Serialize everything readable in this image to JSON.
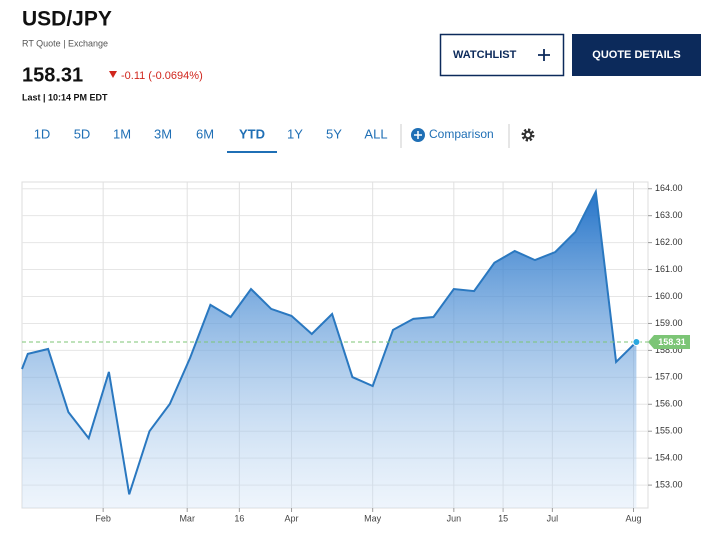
{
  "header": {
    "symbol": "USD/JPY",
    "source": "RT Quote | Exchange",
    "price": "158.31",
    "change": "-0.11 (-0.0694%)",
    "last": "Last | 10:14 PM EDT"
  },
  "buttons": [
    "WATCHLIST",
    "QUOTE DETAILS"
  ],
  "tabs": [
    "1D",
    "5D",
    "1M",
    "3M",
    "6M",
    "YTD",
    "1Y",
    "5Y",
    "ALL"
  ],
  "comparison": "Comparison",
  "chart_data": {
    "type": "area",
    "x": [
      3,
      5,
      12,
      19,
      26,
      33,
      40,
      47,
      54,
      61,
      68,
      75,
      82,
      89,
      96,
      103,
      110,
      117,
      124,
      131,
      138,
      145,
      152,
      159,
      166,
      173,
      180,
      187,
      194,
      201,
      208,
      215
    ],
    "series": [
      {
        "color": "#2a78c0",
        "values": [
          157.31,
          157.87,
          158.05,
          155.71,
          154.74,
          157.2,
          152.66,
          155.0,
          156.01,
          157.72,
          159.69,
          159.24,
          160.28,
          159.54,
          159.28,
          158.61,
          159.35,
          157.01,
          156.68,
          158.76,
          159.17,
          159.24,
          160.28,
          160.2,
          161.25,
          161.69,
          161.35,
          161.65,
          162.4,
          163.89,
          157.57,
          158.31
        ]
      }
    ],
    "xlim": [
      3,
      219
    ],
    "xticks": [
      {
        "value": 31,
        "label": "Feb"
      },
      {
        "value": 60,
        "label": "Mar"
      },
      {
        "value": 78,
        "label": "16"
      },
      {
        "value": 96,
        "label": "Apr"
      },
      {
        "value": 124,
        "label": "May"
      },
      {
        "value": 152,
        "label": "Jun"
      },
      {
        "value": 169,
        "label": "15"
      },
      {
        "value": 186,
        "label": "Jul"
      },
      {
        "value": 214,
        "label": "Aug"
      }
    ],
    "ylim": [
      152.15,
      164.25
    ],
    "yticks": [
      {
        "value": 153,
        "label": "153.00"
      },
      {
        "value": 154,
        "label": "154.00"
      },
      {
        "value": 155,
        "label": "155.00"
      },
      {
        "value": 156,
        "label": "156.00"
      },
      {
        "value": 157,
        "label": "157.00"
      },
      {
        "value": 158,
        "label": "158.00"
      },
      {
        "value": 159,
        "label": "159.00"
      },
      {
        "value": 160,
        "label": "160.00"
      },
      {
        "value": 161,
        "label": "161.00"
      },
      {
        "value": 162,
        "label": "162.00"
      },
      {
        "value": 163,
        "label": "163.00"
      },
      {
        "value": 164,
        "label": "164.00"
      }
    ],
    "grid": true
  }
}
